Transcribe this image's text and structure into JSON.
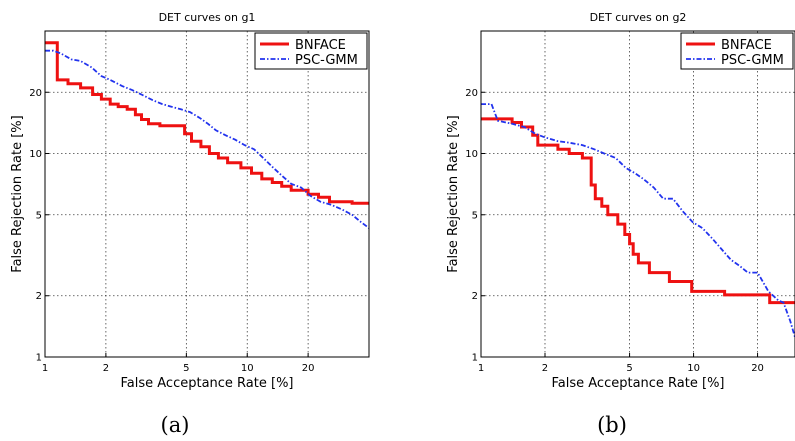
{
  "colors": {
    "bnface": "#ee1111",
    "pscgmm": "#2233ee"
  },
  "chart_data": [
    {
      "type": "line",
      "panel_label": "(a)",
      "title": "DET curves on g1",
      "xlabel": "False Acceptance Rate [%]",
      "ylabel": "False Rejection Rate [%]",
      "xscale": "log",
      "yscale": "log",
      "xlim": [
        1,
        40
      ],
      "ylim": [
        1,
        40
      ],
      "xticks": [
        1,
        2,
        5,
        10,
        20
      ],
      "yticks": [
        1,
        2,
        5,
        10,
        20
      ],
      "grid": true,
      "legend": "top-right",
      "series": [
        {
          "name": "BNFACE",
          "style": "solid",
          "x": [
            1.0,
            1.15,
            1.15,
            1.3,
            1.3,
            1.5,
            1.5,
            1.72,
            1.72,
            1.9,
            1.9,
            2.1,
            2.1,
            2.3,
            2.3,
            2.55,
            2.55,
            2.8,
            2.8,
            3.0,
            3.0,
            3.25,
            3.25,
            3.7,
            3.7,
            4.9,
            4.9,
            5.3,
            5.3,
            5.9,
            5.9,
            6.5,
            6.5,
            7.2,
            7.2,
            8.0,
            8.0,
            9.3,
            9.3,
            10.5,
            10.5,
            11.8,
            11.8,
            13.3,
            13.3,
            14.8,
            14.8,
            16.5,
            16.5,
            20.0,
            20.0,
            22.5,
            22.5,
            25.5,
            25.5,
            33.0,
            33.0,
            40.0
          ],
          "y": [
            35,
            35,
            23,
            23,
            22,
            22,
            21,
            21,
            19.5,
            19.5,
            18.5,
            18.5,
            17.5,
            17.5,
            17,
            17,
            16.5,
            16.5,
            15.5,
            15.5,
            14.7,
            14.7,
            14,
            14,
            13.7,
            13.7,
            12.5,
            12.5,
            11.5,
            11.5,
            10.8,
            10.8,
            10,
            10,
            9.5,
            9.5,
            9,
            9,
            8.5,
            8.5,
            8,
            8,
            7.5,
            7.5,
            7.2,
            7.2,
            6.9,
            6.9,
            6.6,
            6.6,
            6.3,
            6.3,
            6.1,
            6.1,
            5.8,
            5.8,
            5.7,
            5.7
          ]
        },
        {
          "name": "PSC-GMM",
          "style": "dashdot",
          "x": [
            1.0,
            1.1,
            1.2,
            1.35,
            1.5,
            1.7,
            1.9,
            2.1,
            2.4,
            2.7,
            3.0,
            3.4,
            3.8,
            4.2,
            4.7,
            5.2,
            5.8,
            6.4,
            7.0,
            7.8,
            8.7,
            9.7,
            10.8,
            12.0,
            13.3,
            14.8,
            16.5,
            18.5,
            20.5,
            23.0,
            26.0,
            29.5,
            33.0,
            36.5,
            40.0
          ],
          "y": [
            32,
            32,
            31,
            29,
            28.5,
            26.5,
            24,
            23,
            21.5,
            20.5,
            19.5,
            18.3,
            17.5,
            17,
            16.5,
            16,
            15,
            14,
            13,
            12.3,
            11.7,
            11,
            10.5,
            9.5,
            8.6,
            7.8,
            7.1,
            6.8,
            6.2,
            5.8,
            5.6,
            5.3,
            5.0,
            4.6,
            4.3
          ]
        }
      ]
    },
    {
      "type": "line",
      "panel_label": "(b)",
      "title": "DET curves on g2",
      "xlabel": "False Acceptance Rate [%]",
      "ylabel": "False Rejection Rate [%]",
      "xscale": "log",
      "yscale": "log",
      "xlim": [
        1,
        30
      ],
      "ylim": [
        1,
        40
      ],
      "xticks": [
        1,
        2,
        5,
        10,
        20
      ],
      "yticks": [
        1,
        2,
        5,
        10,
        20
      ],
      "grid": true,
      "legend": "top-right",
      "series": [
        {
          "name": "BNFACE",
          "style": "solid",
          "x": [
            1.0,
            1.4,
            1.4,
            1.55,
            1.55,
            1.75,
            1.75,
            1.85,
            1.85,
            2.3,
            2.3,
            2.6,
            2.6,
            3.0,
            3.0,
            3.3,
            3.3,
            3.45,
            3.45,
            3.7,
            3.7,
            3.95,
            3.95,
            4.4,
            4.4,
            4.75,
            4.75,
            5.0,
            5.0,
            5.2,
            5.2,
            5.5,
            5.5,
            6.2,
            6.2,
            7.7,
            7.7,
            9.8,
            9.8,
            14.0,
            14.0,
            22.8,
            22.8,
            30.0
          ],
          "y": [
            14.8,
            14.8,
            14.2,
            14.2,
            13.5,
            13.5,
            12.3,
            12.3,
            11,
            11,
            10.5,
            10.5,
            10,
            10,
            9.5,
            9.5,
            7,
            7,
            6,
            6,
            5.5,
            5.5,
            5,
            5,
            4.5,
            4.5,
            4,
            4,
            3.6,
            3.6,
            3.2,
            3.2,
            2.9,
            2.9,
            2.6,
            2.6,
            2.35,
            2.35,
            2.1,
            2.1,
            2.02,
            2.02,
            1.85,
            1.85
          ]
        },
        {
          "name": "PSC-GMM",
          "style": "dashdot",
          "x": [
            1.0,
            1.12,
            1.2,
            1.4,
            1.6,
            1.8,
            2.0,
            2.3,
            2.6,
            3.0,
            3.4,
            3.8,
            4.3,
            4.8,
            5.3,
            5.8,
            6.5,
            7.2,
            8.0,
            8.9,
            9.9,
            11.0,
            12.3,
            13.5,
            15.0,
            16.5,
            18.0,
            20.0,
            22.5,
            25.0,
            26.5,
            28.5,
            30.0
          ],
          "y": [
            17.5,
            17.5,
            14.5,
            14,
            13.5,
            12.5,
            12,
            11.5,
            11.3,
            11,
            10.5,
            10,
            9.5,
            8.5,
            8,
            7.5,
            6.8,
            6,
            6,
            5.2,
            4.6,
            4.3,
            3.8,
            3.4,
            3.0,
            2.8,
            2.6,
            2.6,
            2.1,
            1.9,
            1.85,
            1.5,
            1.25
          ]
        }
      ]
    }
  ]
}
